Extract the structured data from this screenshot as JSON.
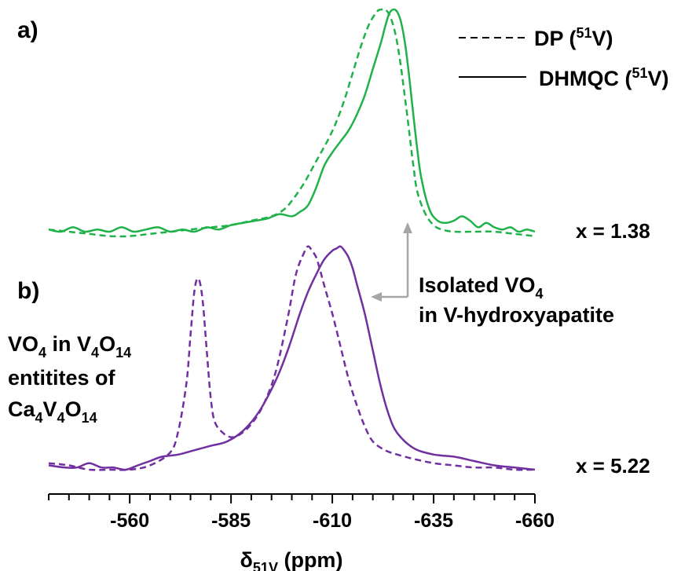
{
  "chart_data": [
    {
      "type": "line",
      "panel": "a)",
      "scale_label": "x = 1.38",
      "color": "#1fb24a",
      "xlabel_main": "δ",
      "xlabel_sub": "51V",
      "xlabel_unit": " (ppm)",
      "xlim": [
        -540,
        -660
      ],
      "x_ticks": [
        -560,
        -585,
        -610,
        -635,
        -660
      ],
      "x_tick_labels": [
        "-560",
        "-585",
        "-610",
        "-635",
        "-660"
      ],
      "x_minor_step": 5,
      "legend": [
        {
          "style": "dashed",
          "text_main": "DP (",
          "text_sup": "51",
          "text_end": "V)"
        },
        {
          "style": "solid",
          "text_main": "DHMQC (",
          "text_sup": "51",
          "text_end": "V)"
        }
      ],
      "series": [
        {
          "style": "dashed",
          "x": [
            -540,
            -545,
            -550,
            -555,
            -560,
            -565,
            -570,
            -575,
            -580,
            -585,
            -590,
            -595,
            -598,
            -600,
            -603,
            -606,
            -609,
            -611,
            -613,
            -615,
            -617,
            -619,
            -621,
            -622,
            -623,
            -624,
            -625,
            -626,
            -627,
            -628,
            -629,
            -630,
            -631,
            -633,
            -635,
            -637,
            -640,
            -645,
            -650,
            -655,
            -660
          ],
          "y": [
            0.01,
            0.0,
            -0.01,
            -0.02,
            -0.02,
            -0.01,
            0.0,
            0.01,
            0.02,
            0.03,
            0.05,
            0.07,
            0.1,
            0.14,
            0.22,
            0.32,
            0.42,
            0.5,
            0.6,
            0.72,
            0.84,
            0.94,
            1.0,
            1.01,
            1.01,
            0.99,
            0.94,
            0.86,
            0.74,
            0.6,
            0.45,
            0.3,
            0.18,
            0.08,
            0.03,
            0.01,
            0.0,
            0.0,
            0.0,
            -0.01,
            -0.02
          ]
        },
        {
          "style": "solid",
          "x": [
            -540,
            -543,
            -546,
            -549,
            -552,
            -555,
            -558,
            -561,
            -564,
            -567,
            -570,
            -573,
            -576,
            -579,
            -582,
            -585,
            -588,
            -591,
            -594,
            -597,
            -600,
            -602,
            -604,
            -606,
            -608,
            -610,
            -612,
            -614,
            -616,
            -618,
            -620,
            -622,
            -623,
            -624,
            -625,
            -626,
            -627,
            -628,
            -629,
            -630,
            -631,
            -632,
            -634,
            -636,
            -638,
            -640,
            -642,
            -644,
            -646,
            -648,
            -650,
            -652,
            -654,
            -656,
            -658,
            -660
          ],
          "y": [
            0.01,
            0.0,
            0.02,
            0.0,
            0.01,
            0.0,
            0.02,
            0.0,
            0.01,
            0.02,
            0.0,
            0.01,
            0.0,
            0.02,
            0.01,
            0.03,
            0.04,
            0.05,
            0.06,
            0.08,
            0.07,
            0.09,
            0.12,
            0.2,
            0.3,
            0.36,
            0.41,
            0.46,
            0.53,
            0.62,
            0.74,
            0.86,
            0.93,
            0.99,
            1.01,
            1.0,
            0.95,
            0.85,
            0.7,
            0.53,
            0.37,
            0.24,
            0.1,
            0.05,
            0.04,
            0.05,
            0.07,
            0.05,
            0.02,
            0.04,
            0.02,
            0.01,
            0.02,
            0.0,
            0.01,
            0.0
          ]
        }
      ]
    },
    {
      "type": "line",
      "panel": "b)",
      "scale_label": "x = 5.22",
      "color": "#7030a0",
      "xlim": [
        -540,
        -660
      ],
      "series": [
        {
          "style": "dashed",
          "x": [
            -540,
            -545,
            -550,
            -555,
            -560,
            -565,
            -570,
            -572,
            -574,
            -575,
            -576,
            -577,
            -578,
            -579,
            -580,
            -581,
            -583,
            -585,
            -587,
            -590,
            -593,
            -596,
            -599,
            -601,
            -603,
            -604,
            -605,
            -606,
            -607,
            -608,
            -610,
            -612,
            -614,
            -616,
            -618,
            -620,
            -623,
            -626,
            -630,
            -635,
            -640,
            -645,
            -650,
            -655,
            -660
          ],
          "y": [
            0.03,
            0.02,
            0.0,
            0.0,
            0.0,
            0.02,
            0.08,
            0.18,
            0.4,
            0.62,
            0.83,
            0.88,
            0.78,
            0.55,
            0.33,
            0.22,
            0.17,
            0.15,
            0.16,
            0.21,
            0.3,
            0.45,
            0.7,
            0.9,
            1.0,
            1.03,
            1.01,
            0.98,
            0.92,
            0.85,
            0.72,
            0.57,
            0.42,
            0.3,
            0.2,
            0.13,
            0.09,
            0.07,
            0.05,
            0.03,
            0.02,
            0.01,
            0.01,
            0.0,
            0.0
          ]
        },
        {
          "style": "solid",
          "x": [
            -540,
            -544,
            -547,
            -550,
            -553,
            -556,
            -559,
            -562,
            -565,
            -568,
            -572,
            -576,
            -580,
            -584,
            -588,
            -592,
            -596,
            -599,
            -602,
            -604,
            -606,
            -608,
            -610,
            -611,
            -612,
            -613,
            -614,
            -615,
            -616,
            -618,
            -620,
            -622,
            -624,
            -626,
            -630,
            -635,
            -640,
            -645,
            -650,
            -655,
            -660
          ],
          "y": [
            0.02,
            0.01,
            0.01,
            0.03,
            0.01,
            0.01,
            0.0,
            0.02,
            0.04,
            0.06,
            0.07,
            0.09,
            0.11,
            0.13,
            0.18,
            0.27,
            0.41,
            0.55,
            0.72,
            0.82,
            0.9,
            0.97,
            1.01,
            1.02,
            1.03,
            1.01,
            0.98,
            0.93,
            0.86,
            0.72,
            0.55,
            0.38,
            0.25,
            0.17,
            0.1,
            0.07,
            0.06,
            0.04,
            0.02,
            0.01,
            0.0
          ]
        }
      ]
    }
  ],
  "annotations": {
    "isolated_line1_main": "Isolated VO",
    "isolated_line1_sub": "4",
    "isolated_line2": "in V-hydroxyapatite",
    "pyro_line1_a": "VO",
    "pyro_line1_b": "4",
    "pyro_line1_c": " in V",
    "pyro_line1_d": "4",
    "pyro_line1_e": "O",
    "pyro_line1_f": "14",
    "pyro_line2": "entitites of",
    "pyro_line3_a": "Ca",
    "pyro_line3_b": "4",
    "pyro_line3_c": "V",
    "pyro_line3_d": "4",
    "pyro_line3_e": "O",
    "pyro_line3_f": "14",
    "arrow_color": "#a6a6a6"
  }
}
